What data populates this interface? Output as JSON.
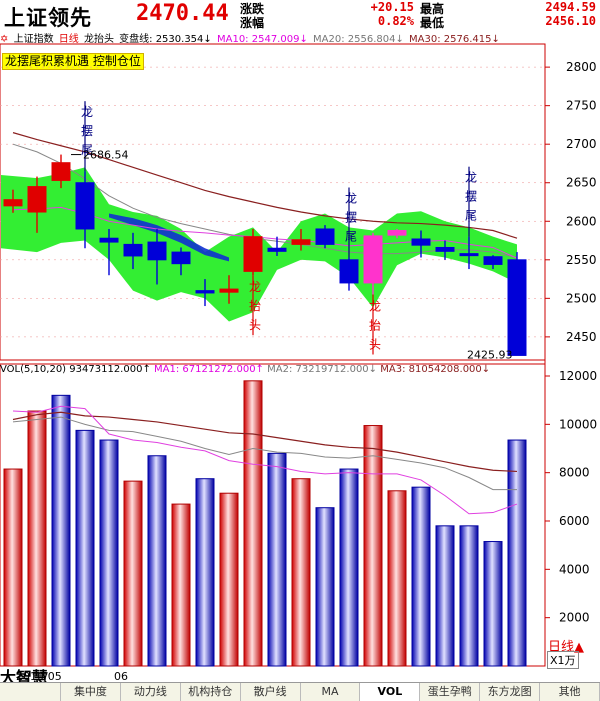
{
  "header": {
    "index_name": "上证领先",
    "price": "2470.44",
    "change_label": "涨跌",
    "change_value": "+20.15",
    "pct_label": "涨幅",
    "pct_value": "0.82%",
    "high_label": "最高",
    "high_value": "2494.59",
    "low_label": "最低",
    "low_value": "2456.10"
  },
  "infobar": {
    "index": "上证指数",
    "period": "日线",
    "indicator": "龙抬头",
    "bianpan": "变盘线: 2530.354↓",
    "ma10": "MA10: 2547.009↓",
    "ma20": "MA20: 2556.804↓",
    "ma30": "MA30: 2576.415↓"
  },
  "banner": "龙摆尾积累机遇  控制仓位",
  "volbar": {
    "title": "VOL(5,10,20)",
    "vol": "93473112.000↑",
    "ma1": "MA1: 67121272.000↑",
    "ma2": "MA2: 73219712.000↓",
    "ma3": "MA3: 81054208.000↓"
  },
  "price_axis": [
    "2800",
    "2750",
    "2700",
    "2650",
    "2600",
    "2550",
    "2500",
    "2450"
  ],
  "volume_axis": [
    "12000",
    "10000",
    "8000",
    "6000",
    "4000",
    "2000"
  ],
  "axis_misc": {
    "period_tag": "日线",
    "unit_tag": "X1万",
    "up_arrow": "▲"
  },
  "annotations": {
    "max_price": "2686.54",
    "min_price": "2425.93"
  },
  "markers": {
    "tail": "龙摆尾",
    "head": "龙抬头"
  },
  "date_labels": [
    "2010/05",
    "06"
  ],
  "brand": "大智慧",
  "tabs": [
    "集中度",
    "动力线",
    "机构持仓",
    "散户线",
    "MA",
    "VOL",
    "蛋生孕鸭",
    "东方龙图",
    "其他"
  ],
  "active_tab": "VOL",
  "colors": {
    "up": "#e00000",
    "down": "#0000d8",
    "band": "#33ee33",
    "ma_dark": "#8a2020",
    "ma_gray": "#888888",
    "ma_magenta": "#e040e0",
    "grid": "#cc0000"
  },
  "chart_data": [
    {
      "type": "candlestick",
      "title": "上证指数 日线",
      "ylim": [
        2420,
        2830
      ],
      "candles": [
        {
          "o": 2620,
          "c": 2628,
          "h": 2641,
          "l": 2611,
          "dir": "up"
        },
        {
          "o": 2612,
          "c": 2645,
          "h": 2658,
          "l": 2585,
          "dir": "up"
        },
        {
          "o": 2653,
          "c": 2676,
          "h": 2686.54,
          "l": 2643,
          "dir": "up"
        },
        {
          "o": 2650,
          "c": 2590,
          "h": 2665,
          "l": 2565,
          "dir": "down"
        },
        {
          "o": 2578,
          "c": 2573,
          "h": 2590,
          "l": 2530,
          "dir": "down"
        },
        {
          "o": 2570,
          "c": 2555,
          "h": 2585,
          "l": 2538,
          "dir": "down"
        },
        {
          "o": 2573,
          "c": 2550,
          "h": 2590,
          "l": 2518,
          "dir": "down"
        },
        {
          "o": 2560,
          "c": 2545,
          "h": 2566,
          "l": 2530,
          "dir": "down"
        },
        {
          "o": 2510,
          "c": 2507,
          "h": 2525,
          "l": 2490,
          "dir": "down"
        },
        {
          "o": 2508,
          "c": 2512,
          "h": 2530,
          "l": 2493,
          "dir": "up"
        },
        {
          "o": 2535,
          "c": 2580,
          "h": 2590,
          "l": 2530,
          "dir": "up"
        },
        {
          "o": 2565,
          "c": 2561,
          "h": 2580,
          "l": 2555,
          "dir": "down"
        },
        {
          "o": 2570,
          "c": 2576,
          "h": 2590,
          "l": 2562,
          "dir": "up"
        },
        {
          "o": 2590,
          "c": 2570,
          "h": 2595,
          "l": 2565,
          "dir": "down"
        },
        {
          "o": 2550,
          "c": 2520,
          "h": 2553,
          "l": 2510,
          "dir": "down"
        },
        {
          "o": 2520,
          "c": 2581,
          "h": 2585,
          "l": 2505,
          "dir": "magenta"
        },
        {
          "o": 2582,
          "c": 2588,
          "h": 2590,
          "l": 2578,
          "dir": "magenta"
        },
        {
          "o": 2577,
          "c": 2569,
          "h": 2588,
          "l": 2553,
          "dir": "down"
        },
        {
          "o": 2566,
          "c": 2561,
          "h": 2575,
          "l": 2550,
          "dir": "down"
        },
        {
          "o": 2558,
          "c": 2556,
          "h": 2580,
          "l": 2538,
          "dir": "down"
        },
        {
          "o": 2554,
          "c": 2544,
          "h": 2556,
          "l": 2538,
          "dir": "down"
        },
        {
          "o": 2550,
          "c": 2425.93,
          "h": 2560,
          "l": 2425.93,
          "dir": "down"
        }
      ],
      "ma_dark": [
        2715,
        2706,
        2698,
        2690,
        2680,
        2670,
        2660,
        2650,
        2640,
        2632,
        2625,
        2618,
        2612,
        2607,
        2603,
        2600,
        2598,
        2597,
        2595,
        2592,
        2588,
        2578
      ],
      "ma_gray": [
        2700,
        2690,
        2675,
        2655,
        2633,
        2617,
        2605,
        2597,
        2590,
        2583,
        2578,
        2574,
        2570,
        2565,
        2560,
        2558,
        2558,
        2560,
        2563,
        2563,
        2560,
        2553
      ],
      "ma_magenta": [
        2615,
        2616,
        2618,
        2610,
        2600,
        2595,
        2590,
        2587,
        2585,
        2582,
        2580,
        2577,
        2575,
        2572,
        2568,
        2570,
        2572,
        2574,
        2575,
        2570,
        2566,
        2552
      ],
      "band_top": [
        2660,
        2656,
        2662,
        2670,
        2622,
        2612,
        2607,
        2590,
        2560,
        2580,
        2592,
        2560,
        2600,
        2610,
        2592,
        2588,
        2610,
        2613,
        2600,
        2592,
        2580,
        2570
      ],
      "band_bottom": [
        2565,
        2560,
        2572,
        2575,
        2550,
        2510,
        2497,
        2508,
        2500,
        2470,
        2482,
        2537,
        2550,
        2548,
        2527,
        2488,
        2543,
        2558,
        2553,
        2545,
        2535,
        2520
      ],
      "tail_markers": [
        3,
        14,
        19
      ],
      "head_markers": [
        10,
        15
      ]
    },
    {
      "type": "bar",
      "title": "VOL(5,10,20)",
      "ylim": [
        0,
        12000
      ],
      "values": [
        8150,
        10550,
        11200,
        9750,
        9350,
        7650,
        8700,
        6700,
        7750,
        7150,
        11800,
        8800,
        7750,
        6550,
        8150,
        9950,
        7250,
        7400,
        5800,
        5800,
        5150,
        9350
      ],
      "colors": [
        "up",
        "up",
        "down",
        "down",
        "down",
        "up",
        "down",
        "up",
        "down",
        "up",
        "up",
        "down",
        "up",
        "down",
        "down",
        "up",
        "up",
        "down",
        "down",
        "down",
        "down",
        "down"
      ],
      "ma1": [
        10550,
        10500,
        10750,
        10650,
        9600,
        9350,
        9250,
        9050,
        8900,
        8500,
        8350,
        8250,
        8050,
        7950,
        8000,
        7950,
        7950,
        7700,
        7050,
        6300,
        6350,
        6700
      ],
      "ma2": [
        10100,
        10200,
        10300,
        10000,
        9750,
        9700,
        9500,
        9300,
        9000,
        8750,
        9000,
        8850,
        8800,
        8650,
        8600,
        8700,
        8550,
        8400,
        8200,
        7800,
        7300,
        7300
      ],
      "ma3": [
        10200,
        10400,
        10500,
        10350,
        10300,
        10200,
        10100,
        9950,
        9800,
        9650,
        9600,
        9450,
        9300,
        9150,
        9050,
        9000,
        8850,
        8650,
        8450,
        8250,
        8100,
        8050
      ]
    }
  ]
}
